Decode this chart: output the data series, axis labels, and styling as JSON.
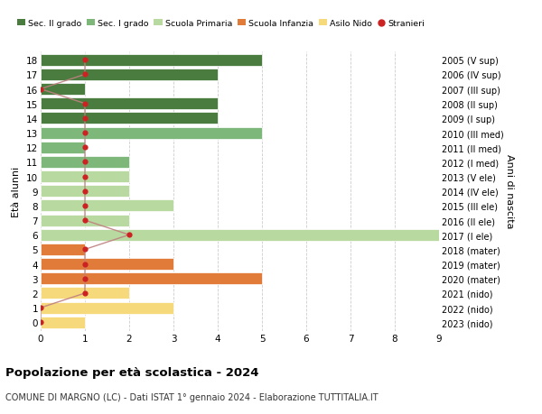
{
  "ages": [
    18,
    17,
    16,
    15,
    14,
    13,
    12,
    11,
    10,
    9,
    8,
    7,
    6,
    5,
    4,
    3,
    2,
    1,
    0
  ],
  "right_labels": [
    "2005 (V sup)",
    "2006 (IV sup)",
    "2007 (III sup)",
    "2008 (II sup)",
    "2009 (I sup)",
    "2010 (III med)",
    "2011 (II med)",
    "2012 (I med)",
    "2013 (V ele)",
    "2014 (IV ele)",
    "2015 (III ele)",
    "2016 (II ele)",
    "2017 (I ele)",
    "2018 (mater)",
    "2019 (mater)",
    "2020 (mater)",
    "2021 (nido)",
    "2022 (nido)",
    "2023 (nido)"
  ],
  "bar_values": [
    5,
    4,
    1,
    4,
    4,
    5,
    1,
    2,
    2,
    2,
    3,
    2,
    9,
    1,
    3,
    5,
    2,
    3,
    1
  ],
  "bar_colors": [
    "#4a7c3f",
    "#4a7c3f",
    "#4a7c3f",
    "#4a7c3f",
    "#4a7c3f",
    "#7db87a",
    "#7db87a",
    "#7db87a",
    "#b8d9a0",
    "#b8d9a0",
    "#b8d9a0",
    "#b8d9a0",
    "#b8d9a0",
    "#e07b39",
    "#e07b39",
    "#e07b39",
    "#f5d97a",
    "#f5d97a",
    "#f5d97a"
  ],
  "stranieri_ages": [
    18,
    17,
    16,
    15,
    14,
    13,
    12,
    11,
    10,
    9,
    8,
    7,
    6,
    5,
    4,
    3,
    2,
    1,
    0
  ],
  "stranieri_values": [
    1,
    1,
    0,
    1,
    1,
    1,
    1,
    1,
    1,
    1,
    1,
    1,
    2,
    1,
    1,
    1,
    1,
    0,
    0
  ],
  "legend_labels": [
    "Sec. II grado",
    "Sec. I grado",
    "Scuola Primaria",
    "Scuola Infanzia",
    "Asilo Nido",
    "Stranieri"
  ],
  "legend_colors": [
    "#4a7c3f",
    "#7db87a",
    "#b8d9a0",
    "#e07b39",
    "#f5d97a",
    "#cc2222"
  ],
  "title": "Popolazione per età scolastica - 2024",
  "subtitle": "COMUNE DI MARGNO (LC) - Dati ISTAT 1° gennaio 2024 - Elaborazione TUTTITALIA.IT",
  "ylabel_left": "Età alunni",
  "ylabel_right": "Anni di nascita",
  "xlim": [
    0,
    9
  ],
  "bar_height": 0.8,
  "stranieri_color": "#cc2222",
  "line_color": "#c08080",
  "bg_color": "#ffffff",
  "grid_color": "#cccccc"
}
